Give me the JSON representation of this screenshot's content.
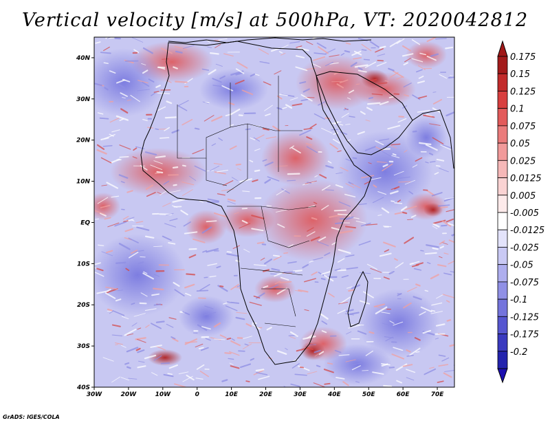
{
  "title": "Vertical velocity [m/s] at 500hPa, VT: 2020042812",
  "credit": "GrADS: IGES/COLA",
  "map": {
    "region": "Africa and surrounding oceans",
    "variable": "vertical velocity",
    "units": "m/s",
    "level": "500hPa",
    "valid_time": "2020042812",
    "lon_range": [
      -30,
      75
    ],
    "lat_range": [
      -40,
      45
    ],
    "lon_ticks": [
      {
        "value": -30,
        "label": "30W"
      },
      {
        "value": -20,
        "label": "20W"
      },
      {
        "value": -10,
        "label": "10W"
      },
      {
        "value": 0,
        "label": "0"
      },
      {
        "value": 10,
        "label": "10E"
      },
      {
        "value": 20,
        "label": "20E"
      },
      {
        "value": 30,
        "label": "30E"
      },
      {
        "value": 40,
        "label": "40E"
      },
      {
        "value": 50,
        "label": "50E"
      },
      {
        "value": 60,
        "label": "60E"
      },
      {
        "value": 70,
        "label": "70E"
      }
    ],
    "lat_ticks": [
      {
        "value": 40,
        "label": "40N"
      },
      {
        "value": 30,
        "label": "30N"
      },
      {
        "value": 20,
        "label": "20N"
      },
      {
        "value": 10,
        "label": "10N"
      },
      {
        "value": 0,
        "label": "EQ"
      },
      {
        "value": -10,
        "label": "10S"
      },
      {
        "value": -20,
        "label": "20S"
      },
      {
        "value": -30,
        "label": "30S"
      },
      {
        "value": -40,
        "label": "40S"
      }
    ]
  },
  "colorbar": {
    "levels": [
      {
        "label": "0.175",
        "color": "#a31b1b"
      },
      {
        "label": "0.15",
        "color": "#c22b2b"
      },
      {
        "label": "0.125",
        "color": "#d83f3f"
      },
      {
        "label": "0.1",
        "color": "#e25a5a"
      },
      {
        "label": "0.075",
        "color": "#ea7b7b"
      },
      {
        "label": "0.05",
        "color": "#f19a9a"
      },
      {
        "label": "0.025",
        "color": "#f6b8b8"
      },
      {
        "label": "0.0125",
        "color": "#fad3d3"
      },
      {
        "label": "0.005",
        "color": "#fdeaea"
      },
      {
        "label": "-0.005",
        "color": "#ffffff"
      },
      {
        "label": "-0.0125",
        "color": "#e3e3fb"
      },
      {
        "label": "-0.025",
        "color": "#c9c9f4"
      },
      {
        "label": "-0.05",
        "color": "#aeaeee"
      },
      {
        "label": "-0.075",
        "color": "#9090e6"
      },
      {
        "label": "-0.1",
        "color": "#7474dc"
      },
      {
        "label": "-0.125",
        "color": "#5656d0"
      },
      {
        "label": "-0.175",
        "color": "#3a3abf"
      },
      {
        "label": "-0.2",
        "color": "#2323ad"
      }
    ],
    "top_triangle_color": "#a01818",
    "bottom_triangle_color": "#1c0fb0"
  }
}
